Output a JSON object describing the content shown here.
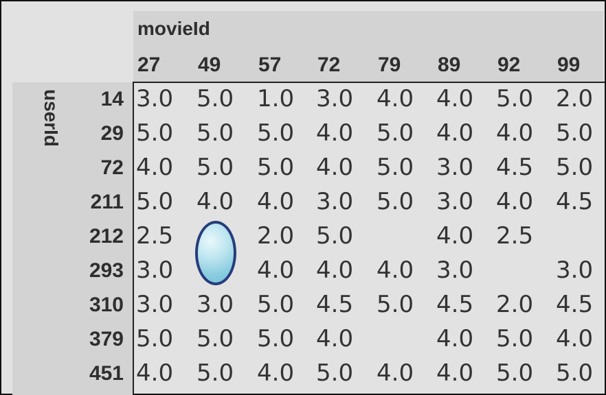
{
  "table": {
    "column_axis_label": "movieId",
    "row_axis_label": "userId",
    "columns": [
      "27",
      "49",
      "57",
      "72",
      "79",
      "89",
      "92",
      "99"
    ],
    "rows": [
      {
        "label": "14",
        "values": [
          "3.0",
          "5.0",
          "1.0",
          "3.0",
          "4.0",
          "4.0",
          "5.0",
          "2.0"
        ]
      },
      {
        "label": "29",
        "values": [
          "5.0",
          "5.0",
          "5.0",
          "4.0",
          "5.0",
          "4.0",
          "4.0",
          "5.0"
        ]
      },
      {
        "label": "72",
        "values": [
          "4.0",
          "5.0",
          "5.0",
          "4.0",
          "5.0",
          "3.0",
          "4.5",
          "5.0"
        ]
      },
      {
        "label": "211",
        "values": [
          "5.0",
          "4.0",
          "4.0",
          "3.0",
          "5.0",
          "3.0",
          "4.0",
          "4.5"
        ]
      },
      {
        "label": "212",
        "values": [
          "2.5",
          "",
          "2.0",
          "5.0",
          "",
          "4.0",
          "2.5",
          ""
        ]
      },
      {
        "label": "293",
        "values": [
          "3.0",
          "",
          "4.0",
          "4.0",
          "4.0",
          "3.0",
          "",
          "3.0"
        ]
      },
      {
        "label": "310",
        "values": [
          "3.0",
          "3.0",
          "5.0",
          "4.5",
          "5.0",
          "4.5",
          "2.0",
          "4.5"
        ]
      },
      {
        "label": "379",
        "values": [
          "5.0",
          "5.0",
          "5.0",
          "4.0",
          "",
          "4.0",
          "5.0",
          "4.0"
        ]
      },
      {
        "label": "451",
        "values": [
          "4.0",
          "5.0",
          "4.0",
          "5.0",
          "4.0",
          "4.0",
          "5.0",
          "5.0"
        ]
      }
    ],
    "marker_color": "#263c7c"
  }
}
